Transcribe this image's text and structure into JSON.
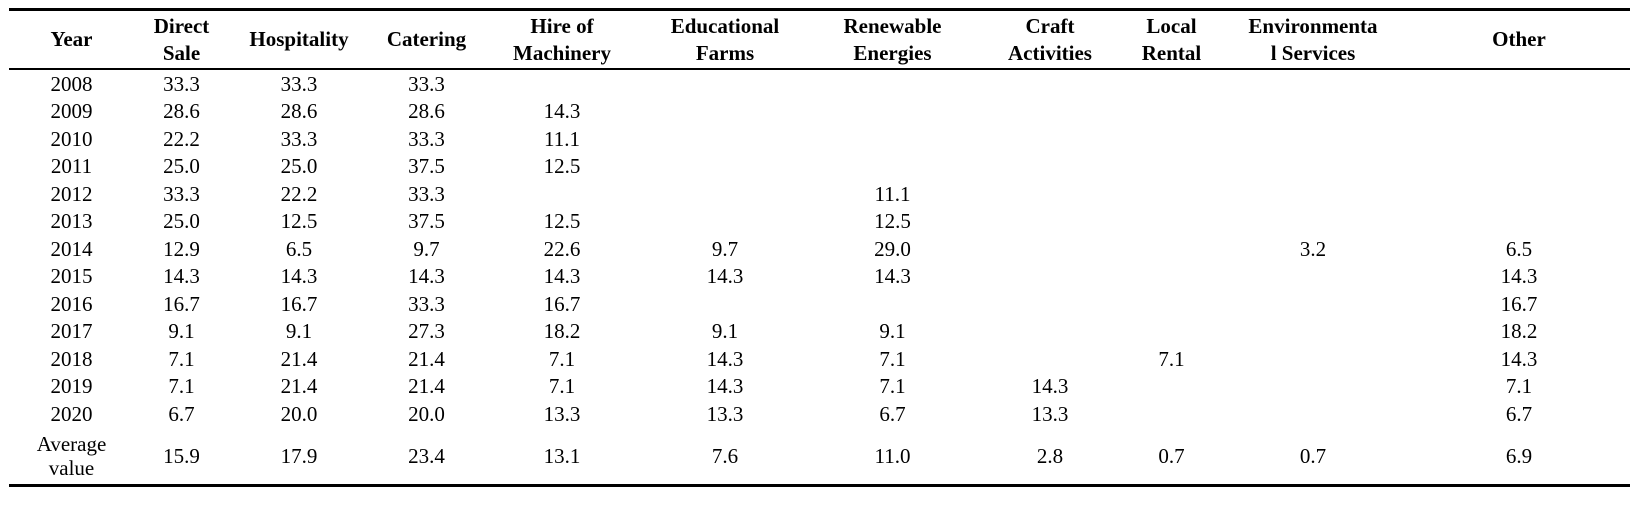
{
  "table": {
    "headers": [
      "Year",
      "Direct\nSale",
      "Hospitality",
      "Catering",
      "Hire of\nMachinery",
      "Educational\nFarms",
      "Renewable\nEnergies",
      "Craft\nActivities",
      "Local\nRental",
      "Environmenta\nl Services",
      "Other"
    ],
    "rows": [
      [
        "2008",
        "33.3",
        "33.3",
        "33.3",
        "",
        "",
        "",
        "",
        "",
        "",
        ""
      ],
      [
        "2009",
        "28.6",
        "28.6",
        "28.6",
        "14.3",
        "",
        "",
        "",
        "",
        "",
        ""
      ],
      [
        "2010",
        "22.2",
        "33.3",
        "33.3",
        "11.1",
        "",
        "",
        "",
        "",
        "",
        ""
      ],
      [
        "2011",
        "25.0",
        "25.0",
        "37.5",
        "12.5",
        "",
        "",
        "",
        "",
        "",
        ""
      ],
      [
        "2012",
        "33.3",
        "22.2",
        "33.3",
        "",
        "",
        "11.1",
        "",
        "",
        "",
        ""
      ],
      [
        "2013",
        "25.0",
        "12.5",
        "37.5",
        "12.5",
        "",
        "12.5",
        "",
        "",
        "",
        ""
      ],
      [
        "2014",
        "12.9",
        "6.5",
        "9.7",
        "22.6",
        "9.7",
        "29.0",
        "",
        "",
        "3.2",
        "6.5"
      ],
      [
        "2015",
        "14.3",
        "14.3",
        "14.3",
        "14.3",
        "14.3",
        "14.3",
        "",
        "",
        "",
        "14.3"
      ],
      [
        "2016",
        "16.7",
        "16.7",
        "33.3",
        "16.7",
        "",
        "",
        "",
        "",
        "",
        "16.7"
      ],
      [
        "2017",
        "9.1",
        "9.1",
        "27.3",
        "18.2",
        "9.1",
        "9.1",
        "",
        "",
        "",
        "18.2"
      ],
      [
        "2018",
        "7.1",
        "21.4",
        "21.4",
        "7.1",
        "14.3",
        "7.1",
        "",
        "7.1",
        "",
        "14.3"
      ],
      [
        "2019",
        "7.1",
        "21.4",
        "21.4",
        "7.1",
        "14.3",
        "7.1",
        "14.3",
        "",
        "",
        "7.1"
      ],
      [
        "2020",
        "6.7",
        "20.0",
        "20.0",
        "13.3",
        "13.3",
        "6.7",
        "13.3",
        "",
        "",
        "6.7"
      ],
      [
        "Average\nvalue",
        "15.9",
        "17.9",
        "23.4",
        "13.1",
        "7.6",
        "11.0",
        "2.8",
        "0.7",
        "0.7",
        "6.9"
      ]
    ]
  }
}
